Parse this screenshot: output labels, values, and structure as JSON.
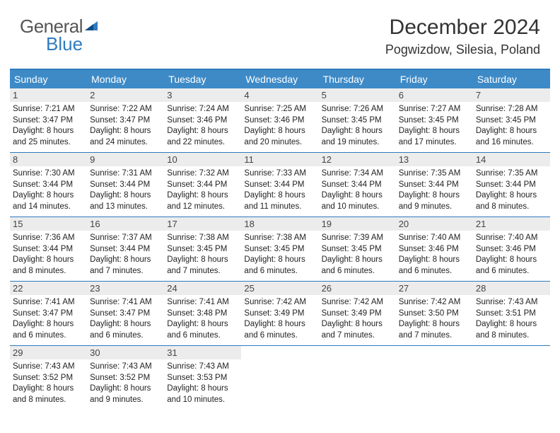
{
  "logo": {
    "text1": "General",
    "text2": "Blue"
  },
  "title": "December 2024",
  "location": "Pogwizdow, Silesia, Poland",
  "colors": {
    "header_bg": "#3d8ac7",
    "border": "#2f7bbf",
    "daynum_bg": "#ececec"
  },
  "day_names": [
    "Sunday",
    "Monday",
    "Tuesday",
    "Wednesday",
    "Thursday",
    "Friday",
    "Saturday"
  ],
  "days": [
    {
      "n": 1,
      "sr": "7:21 AM",
      "ss": "3:47 PM",
      "dl": "8 hours and 25 minutes."
    },
    {
      "n": 2,
      "sr": "7:22 AM",
      "ss": "3:47 PM",
      "dl": "8 hours and 24 minutes."
    },
    {
      "n": 3,
      "sr": "7:24 AM",
      "ss": "3:46 PM",
      "dl": "8 hours and 22 minutes."
    },
    {
      "n": 4,
      "sr": "7:25 AM",
      "ss": "3:46 PM",
      "dl": "8 hours and 20 minutes."
    },
    {
      "n": 5,
      "sr": "7:26 AM",
      "ss": "3:45 PM",
      "dl": "8 hours and 19 minutes."
    },
    {
      "n": 6,
      "sr": "7:27 AM",
      "ss": "3:45 PM",
      "dl": "8 hours and 17 minutes."
    },
    {
      "n": 7,
      "sr": "7:28 AM",
      "ss": "3:45 PM",
      "dl": "8 hours and 16 minutes."
    },
    {
      "n": 8,
      "sr": "7:30 AM",
      "ss": "3:44 PM",
      "dl": "8 hours and 14 minutes."
    },
    {
      "n": 9,
      "sr": "7:31 AM",
      "ss": "3:44 PM",
      "dl": "8 hours and 13 minutes."
    },
    {
      "n": 10,
      "sr": "7:32 AM",
      "ss": "3:44 PM",
      "dl": "8 hours and 12 minutes."
    },
    {
      "n": 11,
      "sr": "7:33 AM",
      "ss": "3:44 PM",
      "dl": "8 hours and 11 minutes."
    },
    {
      "n": 12,
      "sr": "7:34 AM",
      "ss": "3:44 PM",
      "dl": "8 hours and 10 minutes."
    },
    {
      "n": 13,
      "sr": "7:35 AM",
      "ss": "3:44 PM",
      "dl": "8 hours and 9 minutes."
    },
    {
      "n": 14,
      "sr": "7:35 AM",
      "ss": "3:44 PM",
      "dl": "8 hours and 8 minutes."
    },
    {
      "n": 15,
      "sr": "7:36 AM",
      "ss": "3:44 PM",
      "dl": "8 hours and 8 minutes."
    },
    {
      "n": 16,
      "sr": "7:37 AM",
      "ss": "3:44 PM",
      "dl": "8 hours and 7 minutes."
    },
    {
      "n": 17,
      "sr": "7:38 AM",
      "ss": "3:45 PM",
      "dl": "8 hours and 7 minutes."
    },
    {
      "n": 18,
      "sr": "7:38 AM",
      "ss": "3:45 PM",
      "dl": "8 hours and 6 minutes."
    },
    {
      "n": 19,
      "sr": "7:39 AM",
      "ss": "3:45 PM",
      "dl": "8 hours and 6 minutes."
    },
    {
      "n": 20,
      "sr": "7:40 AM",
      "ss": "3:46 PM",
      "dl": "8 hours and 6 minutes."
    },
    {
      "n": 21,
      "sr": "7:40 AM",
      "ss": "3:46 PM",
      "dl": "8 hours and 6 minutes."
    },
    {
      "n": 22,
      "sr": "7:41 AM",
      "ss": "3:47 PM",
      "dl": "8 hours and 6 minutes."
    },
    {
      "n": 23,
      "sr": "7:41 AM",
      "ss": "3:47 PM",
      "dl": "8 hours and 6 minutes."
    },
    {
      "n": 24,
      "sr": "7:41 AM",
      "ss": "3:48 PM",
      "dl": "8 hours and 6 minutes."
    },
    {
      "n": 25,
      "sr": "7:42 AM",
      "ss": "3:49 PM",
      "dl": "8 hours and 6 minutes."
    },
    {
      "n": 26,
      "sr": "7:42 AM",
      "ss": "3:49 PM",
      "dl": "8 hours and 7 minutes."
    },
    {
      "n": 27,
      "sr": "7:42 AM",
      "ss": "3:50 PM",
      "dl": "8 hours and 7 minutes."
    },
    {
      "n": 28,
      "sr": "7:43 AM",
      "ss": "3:51 PM",
      "dl": "8 hours and 8 minutes."
    },
    {
      "n": 29,
      "sr": "7:43 AM",
      "ss": "3:52 PM",
      "dl": "8 hours and 8 minutes."
    },
    {
      "n": 30,
      "sr": "7:43 AM",
      "ss": "3:52 PM",
      "dl": "8 hours and 9 minutes."
    },
    {
      "n": 31,
      "sr": "7:43 AM",
      "ss": "3:53 PM",
      "dl": "8 hours and 10 minutes."
    }
  ],
  "labels": {
    "sunrise": "Sunrise:",
    "sunset": "Sunset:",
    "daylight": "Daylight:"
  }
}
